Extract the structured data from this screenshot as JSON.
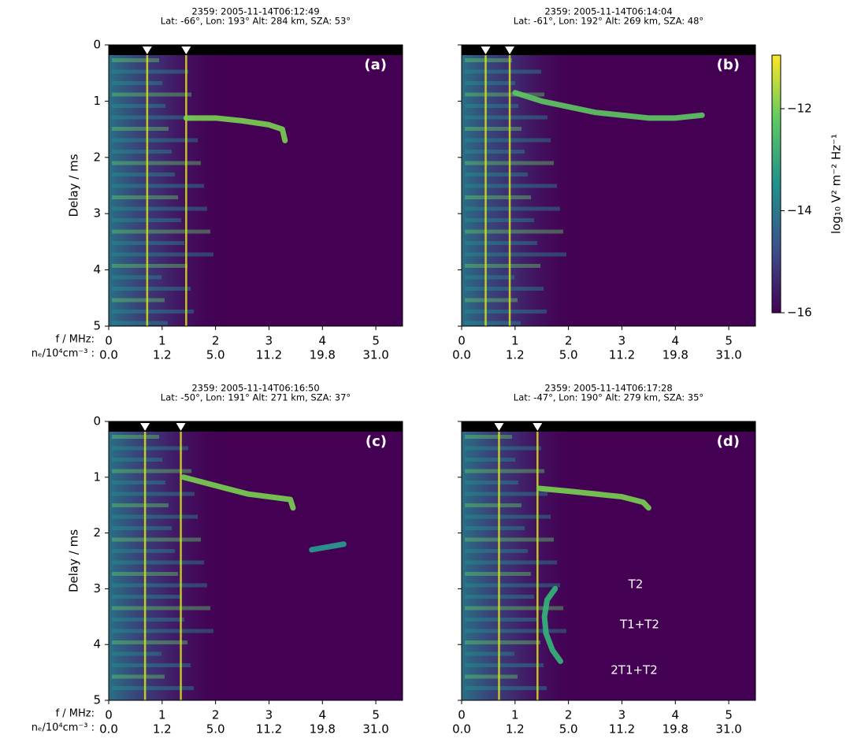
{
  "chart_data": [
    {
      "type": "heatmap",
      "title": "2359: 2005-11-14T06:12:49",
      "subtitle": "Lat: -66°, Lon: 193° Alt: 284 km, SZA: 53°",
      "panel_label": "(a)",
      "xlabel": "f / MHz:",
      "x2label": "nₑ/10⁴cm⁻³ :",
      "ylabel": "Delay / ms",
      "xlim": [
        0,
        5.5
      ],
      "xticks": [
        0,
        1,
        2,
        3,
        4,
        5
      ],
      "x2ticks": [
        {
          "value": 0,
          "label": "0.0"
        },
        {
          "value": 1,
          "label": "1.2"
        },
        {
          "value": 2,
          "label": "5.0"
        },
        {
          "value": 3,
          "label": "11.2"
        },
        {
          "value": 4,
          "label": "19.8"
        },
        {
          "value": 5,
          "label": "31.0"
        }
      ],
      "ylim": [
        0,
        5
      ],
      "yticks": [
        0,
        1,
        2,
        3,
        4,
        5
      ],
      "y_inverted": true,
      "show_ytick_labels": true,
      "markers": [
        0.72,
        1.45
      ],
      "marker_color": "#d8e219",
      "series": [
        {
          "color": "#7ad151",
          "x": [
            1.45,
            2.0,
            2.5,
            3.0,
            3.25,
            3.3
          ],
          "values": [
            1.3,
            1.3,
            1.35,
            1.42,
            1.5,
            1.7
          ]
        }
      ],
      "annotations": []
    },
    {
      "type": "heatmap",
      "title": "2359: 2005-11-14T06:14:04",
      "subtitle": "Lat: -61°, Lon: 192° Alt: 269 km, SZA: 48°",
      "panel_label": "(b)",
      "xlim": [
        0,
        5.5
      ],
      "xticks": [
        0,
        1,
        2,
        3,
        4,
        5
      ],
      "x2ticks": [
        {
          "value": 0,
          "label": "0.0"
        },
        {
          "value": 1,
          "label": "1.2"
        },
        {
          "value": 2,
          "label": "5.0"
        },
        {
          "value": 3,
          "label": "11.2"
        },
        {
          "value": 4,
          "label": "19.8"
        },
        {
          "value": 5,
          "label": "31.0"
        }
      ],
      "ylim": [
        0,
        5
      ],
      "yticks": [
        0,
        1,
        2,
        3,
        4,
        5
      ],
      "y_inverted": true,
      "show_ytick_labels": false,
      "markers": [
        0.45,
        0.9
      ],
      "marker_color": "#d8e219",
      "series": [
        {
          "color": "#5ec962",
          "x": [
            1.0,
            1.5,
            2.0,
            2.5,
            3.0,
            3.5,
            4.0,
            4.5
          ],
          "values": [
            0.85,
            1.0,
            1.1,
            1.2,
            1.25,
            1.3,
            1.3,
            1.25
          ]
        }
      ],
      "annotations": []
    },
    {
      "type": "heatmap",
      "title": "2359: 2005-11-14T06:16:50",
      "subtitle": "Lat: -50°, Lon: 191° Alt: 271 km, SZA: 37°",
      "panel_label": "(c)",
      "xlabel": "f / MHz:",
      "x2label": "nₑ/10⁴cm⁻³ :",
      "ylabel": "Delay / ms",
      "xlim": [
        0,
        5.5
      ],
      "xticks": [
        0,
        1,
        2,
        3,
        4,
        5
      ],
      "x2ticks": [
        {
          "value": 0,
          "label": "0.0"
        },
        {
          "value": 1,
          "label": "1.2"
        },
        {
          "value": 2,
          "label": "5.0"
        },
        {
          "value": 3,
          "label": "11.2"
        },
        {
          "value": 4,
          "label": "19.8"
        },
        {
          "value": 5,
          "label": "31.0"
        }
      ],
      "ylim": [
        0,
        5
      ],
      "yticks": [
        0,
        1,
        2,
        3,
        4,
        5
      ],
      "y_inverted": true,
      "show_ytick_labels": true,
      "markers": [
        0.68,
        1.35
      ],
      "marker_color": "#d8e219",
      "series": [
        {
          "color": "#7ad151",
          "x": [
            1.4,
            1.8,
            2.2,
            2.6,
            3.0,
            3.4,
            3.45
          ],
          "values": [
            1.0,
            1.1,
            1.2,
            1.3,
            1.35,
            1.4,
            1.55
          ]
        },
        {
          "color": "#2a9d8f",
          "x": [
            3.8,
            4.1,
            4.4
          ],
          "values": [
            2.3,
            2.25,
            2.2
          ]
        }
      ],
      "annotations": []
    },
    {
      "type": "heatmap",
      "title": "2359: 2005-11-14T06:17:28",
      "subtitle": "Lat: -47°, Lon: 190° Alt: 279 km, SZA: 35°",
      "panel_label": "(d)",
      "xlim": [
        0,
        5.5
      ],
      "xticks": [
        0,
        1,
        2,
        3,
        4,
        5
      ],
      "x2ticks": [
        {
          "value": 0,
          "label": "0.0"
        },
        {
          "value": 1,
          "label": "1.2"
        },
        {
          "value": 2,
          "label": "5.0"
        },
        {
          "value": 3,
          "label": "11.2"
        },
        {
          "value": 4,
          "label": "19.8"
        },
        {
          "value": 5,
          "label": "31.0"
        }
      ],
      "ylim": [
        0,
        5
      ],
      "yticks": [
        0,
        1,
        2,
        3,
        4,
        5
      ],
      "y_inverted": true,
      "show_ytick_labels": false,
      "markers": [
        0.7,
        1.42
      ],
      "marker_color": "#d8e219",
      "series": [
        {
          "color": "#7ad151",
          "x": [
            1.45,
            2.0,
            2.5,
            3.0,
            3.4,
            3.5
          ],
          "values": [
            1.2,
            1.25,
            1.3,
            1.35,
            1.45,
            1.55
          ]
        },
        {
          "color": "#35b779",
          "x": [
            1.75,
            1.6,
            1.55,
            1.58,
            1.7,
            1.85
          ],
          "values": [
            3.0,
            3.2,
            3.5,
            3.8,
            4.1,
            4.3
          ]
        }
      ],
      "annotations": [
        "T2",
        "T1+T2",
        "2T1+T2"
      ]
    }
  ],
  "colorbar": {
    "label": "log₁₀ V² m⁻² Hz⁻¹",
    "lim": [
      -16,
      -10.95
    ],
    "ticks": [
      {
        "value": -12,
        "label": "−12"
      },
      {
        "value": -14,
        "label": "−14"
      },
      {
        "value": -16,
        "label": "−16"
      }
    ],
    "colormap": [
      "#440154",
      "#3b528b",
      "#21918c",
      "#5ec962",
      "#fde725"
    ]
  }
}
